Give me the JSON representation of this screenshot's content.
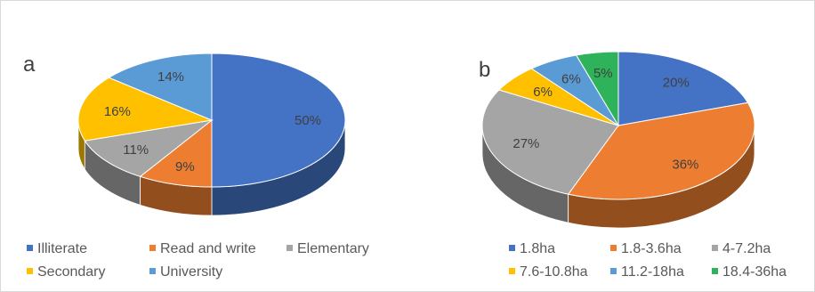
{
  "chart_data": [
    {
      "type": "pie",
      "panel_label": "a",
      "categories": [
        "Illiterate",
        "Read and write",
        "Elementary",
        "Secondary",
        "University"
      ],
      "values": [
        50,
        9,
        11,
        16,
        14
      ],
      "value_labels": [
        "50%",
        "9%",
        "11%",
        "16%",
        "14%"
      ],
      "colors": [
        "#4472C4",
        "#ED7D31",
        "#A5A5A5",
        "#FFC000",
        "#5B9BD5"
      ],
      "title": "",
      "legend_position": "bottom",
      "style": "3d"
    },
    {
      "type": "pie",
      "panel_label": "b",
      "categories": [
        "1.8ha",
        "1.8-3.6ha",
        "4-7.2ha",
        "7.6-10.8ha",
        "11.2-18ha",
        "18.4-36ha"
      ],
      "values": [
        20,
        36,
        27,
        6,
        6,
        5
      ],
      "value_labels": [
        "20%",
        "36%",
        "27%",
        "6%",
        "6%",
        "5%"
      ],
      "colors": [
        "#4472C4",
        "#ED7D31",
        "#A5A5A5",
        "#FFC000",
        "#5B9BD5",
        "#2EB35A"
      ],
      "title": "",
      "legend_position": "bottom",
      "style": "3d"
    }
  ]
}
